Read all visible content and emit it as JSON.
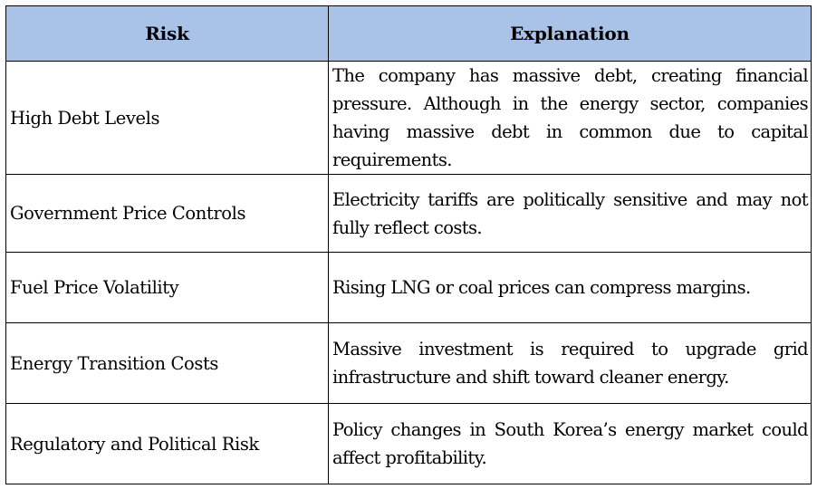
{
  "table": {
    "headers": {
      "risk": "Risk",
      "explanation": "Explanation"
    },
    "rows": [
      {
        "risk": "High Debt Levels",
        "explanation": "The company has massive debt, creating financial pressure. Although in the energy sector, companies having massive debt in common due to capital requirements."
      },
      {
        "risk": "Government Price Controls",
        "explanation": "Electricity tariffs are politically sensitive and may not fully reflect costs."
      },
      {
        "risk": "Fuel Price Volatility",
        "explanation": "Rising LNG or coal prices can compress margins."
      },
      {
        "risk": "Energy Transition Costs",
        "explanation": "Massive investment is required to upgrade grid infrastructure and shift toward cleaner energy."
      },
      {
        "risk": "Regulatory and Political Risk",
        "explanation": "Policy changes in South Korea’s energy market could affect profitability."
      }
    ],
    "header_color": "#a9c3e8"
  }
}
